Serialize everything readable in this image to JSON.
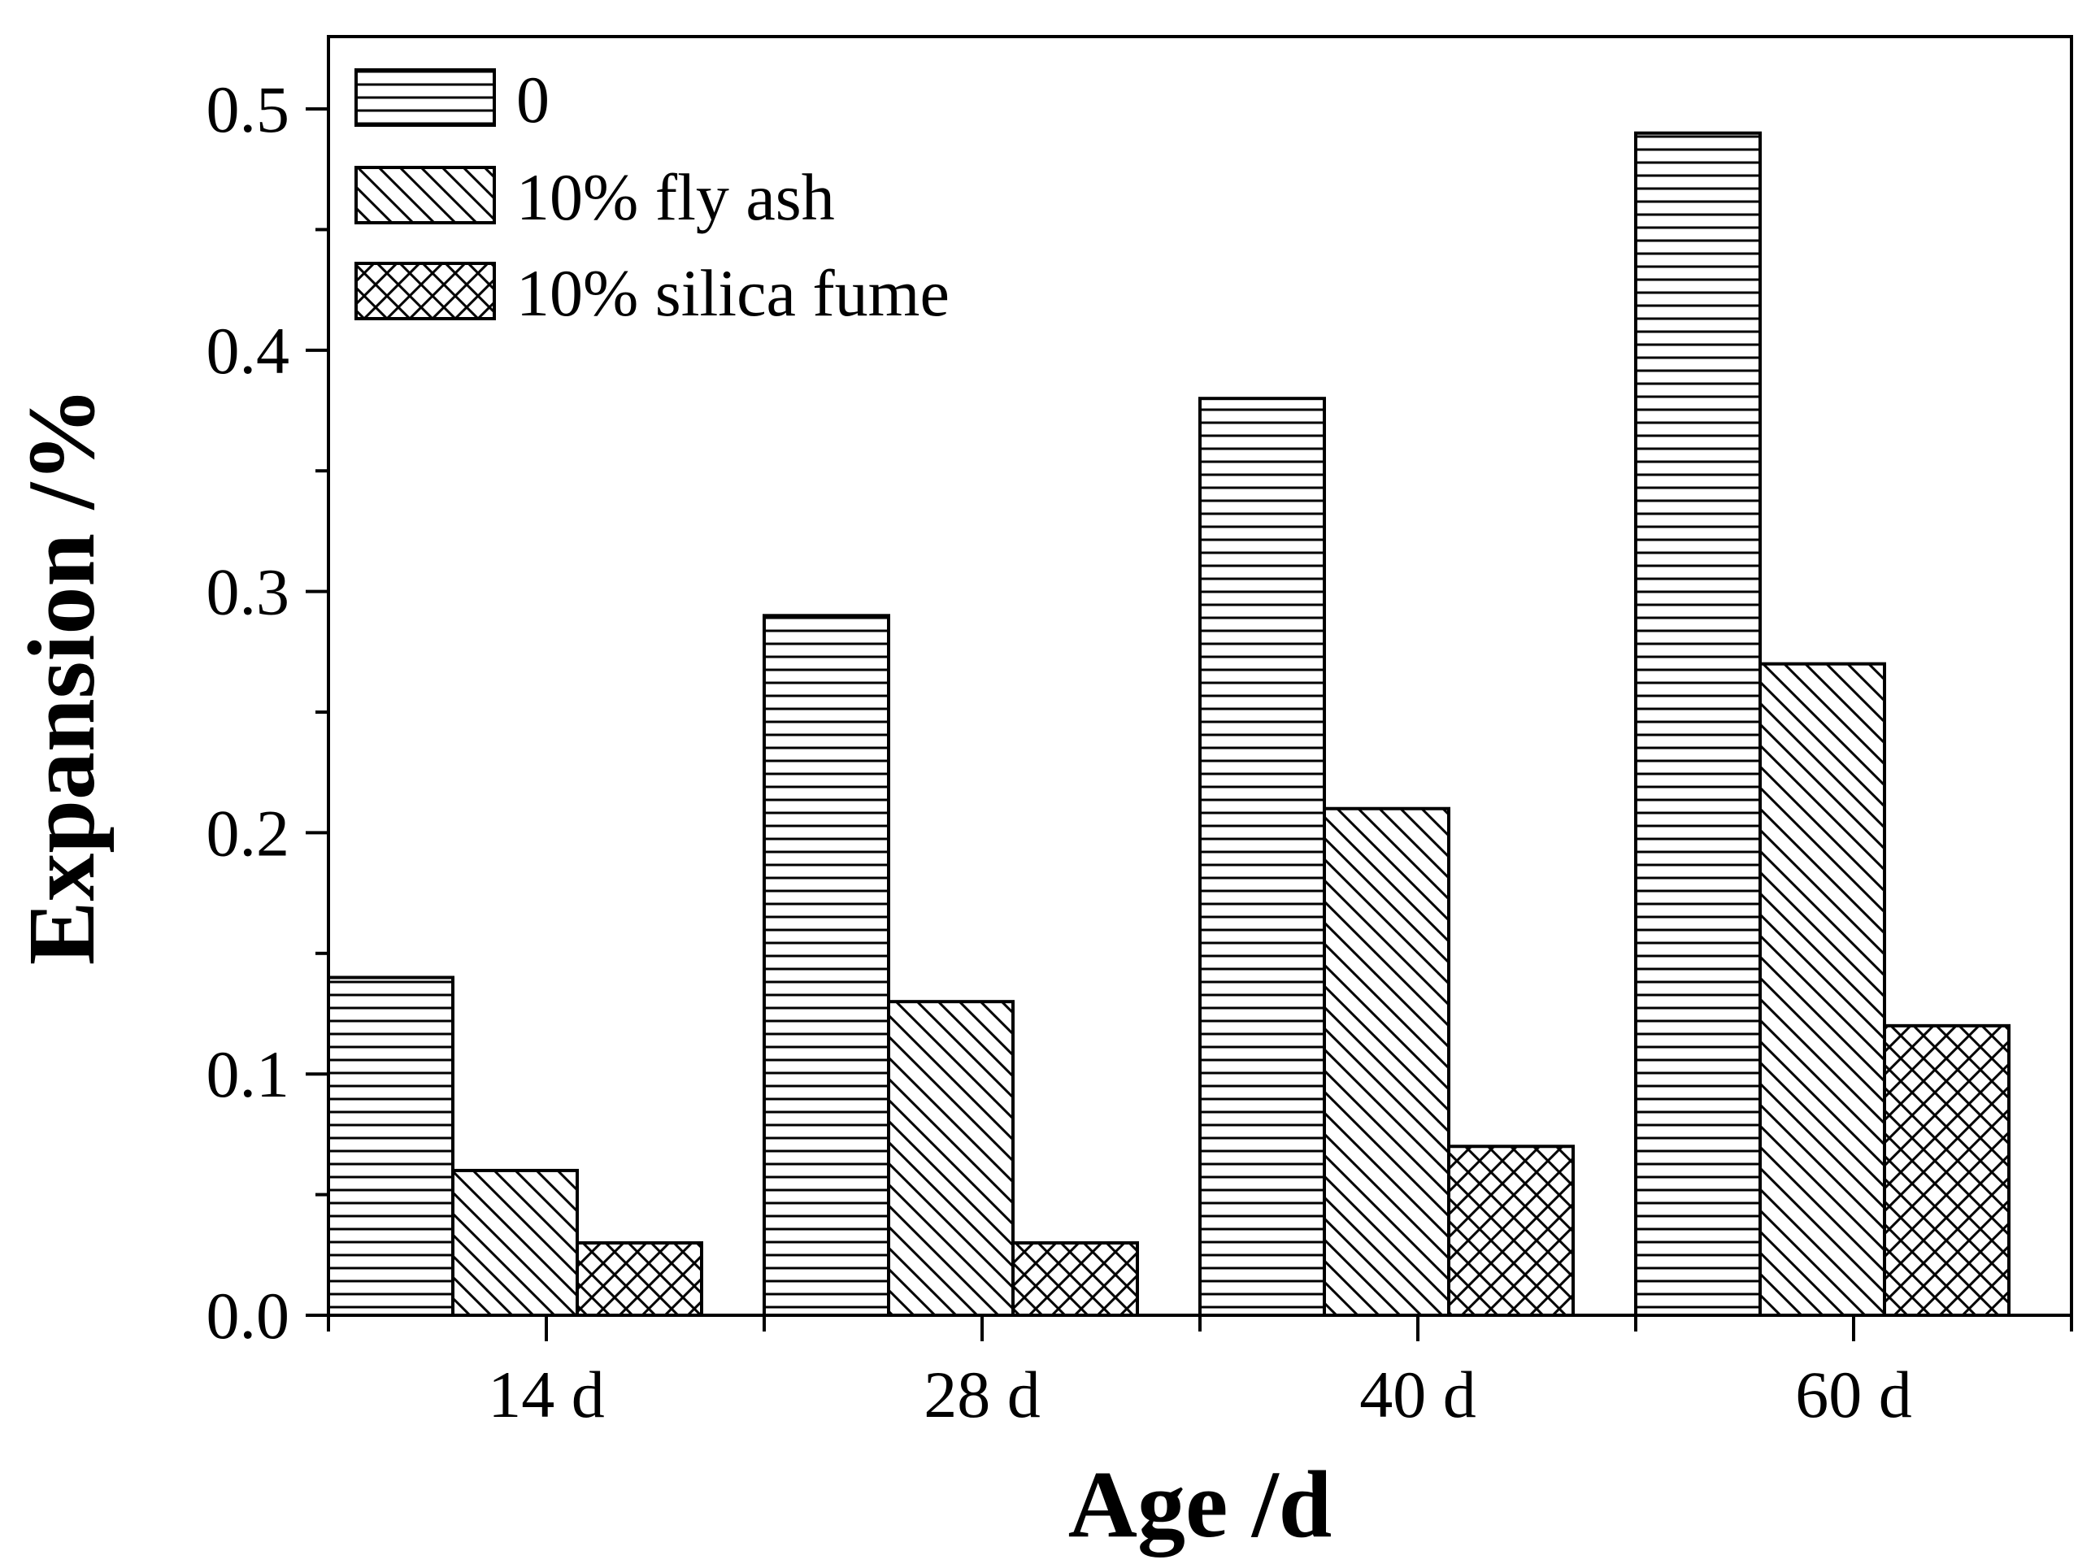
{
  "chart_data": {
    "type": "bar",
    "title": "",
    "xlabel": "Age /d",
    "ylabel": "Expansion /%",
    "categories": [
      "14 d",
      "28 d",
      "40 d",
      "60 d"
    ],
    "series": [
      {
        "name": "0",
        "pattern": "horizontal-lines",
        "values": [
          0.14,
          0.29,
          0.38,
          0.49
        ]
      },
      {
        "name": "10% fly ash",
        "pattern": "diagonal-lines",
        "values": [
          0.06,
          0.13,
          0.21,
          0.27
        ]
      },
      {
        "name": "10% silica fume",
        "pattern": "crosshatch",
        "values": [
          0.03,
          0.03,
          0.07,
          0.12
        ]
      }
    ],
    "ylim": [
      0,
      0.53
    ],
    "yticks": [
      "0.0",
      "0.1",
      "0.2",
      "0.3",
      "0.4",
      "0.5"
    ],
    "yticks_values": [
      0,
      0.1,
      0.2,
      0.3,
      0.4,
      0.5
    ],
    "grid": false,
    "legend_position": "top-left"
  },
  "colors": {
    "stroke": "#000000",
    "fill": "#ffffff"
  }
}
